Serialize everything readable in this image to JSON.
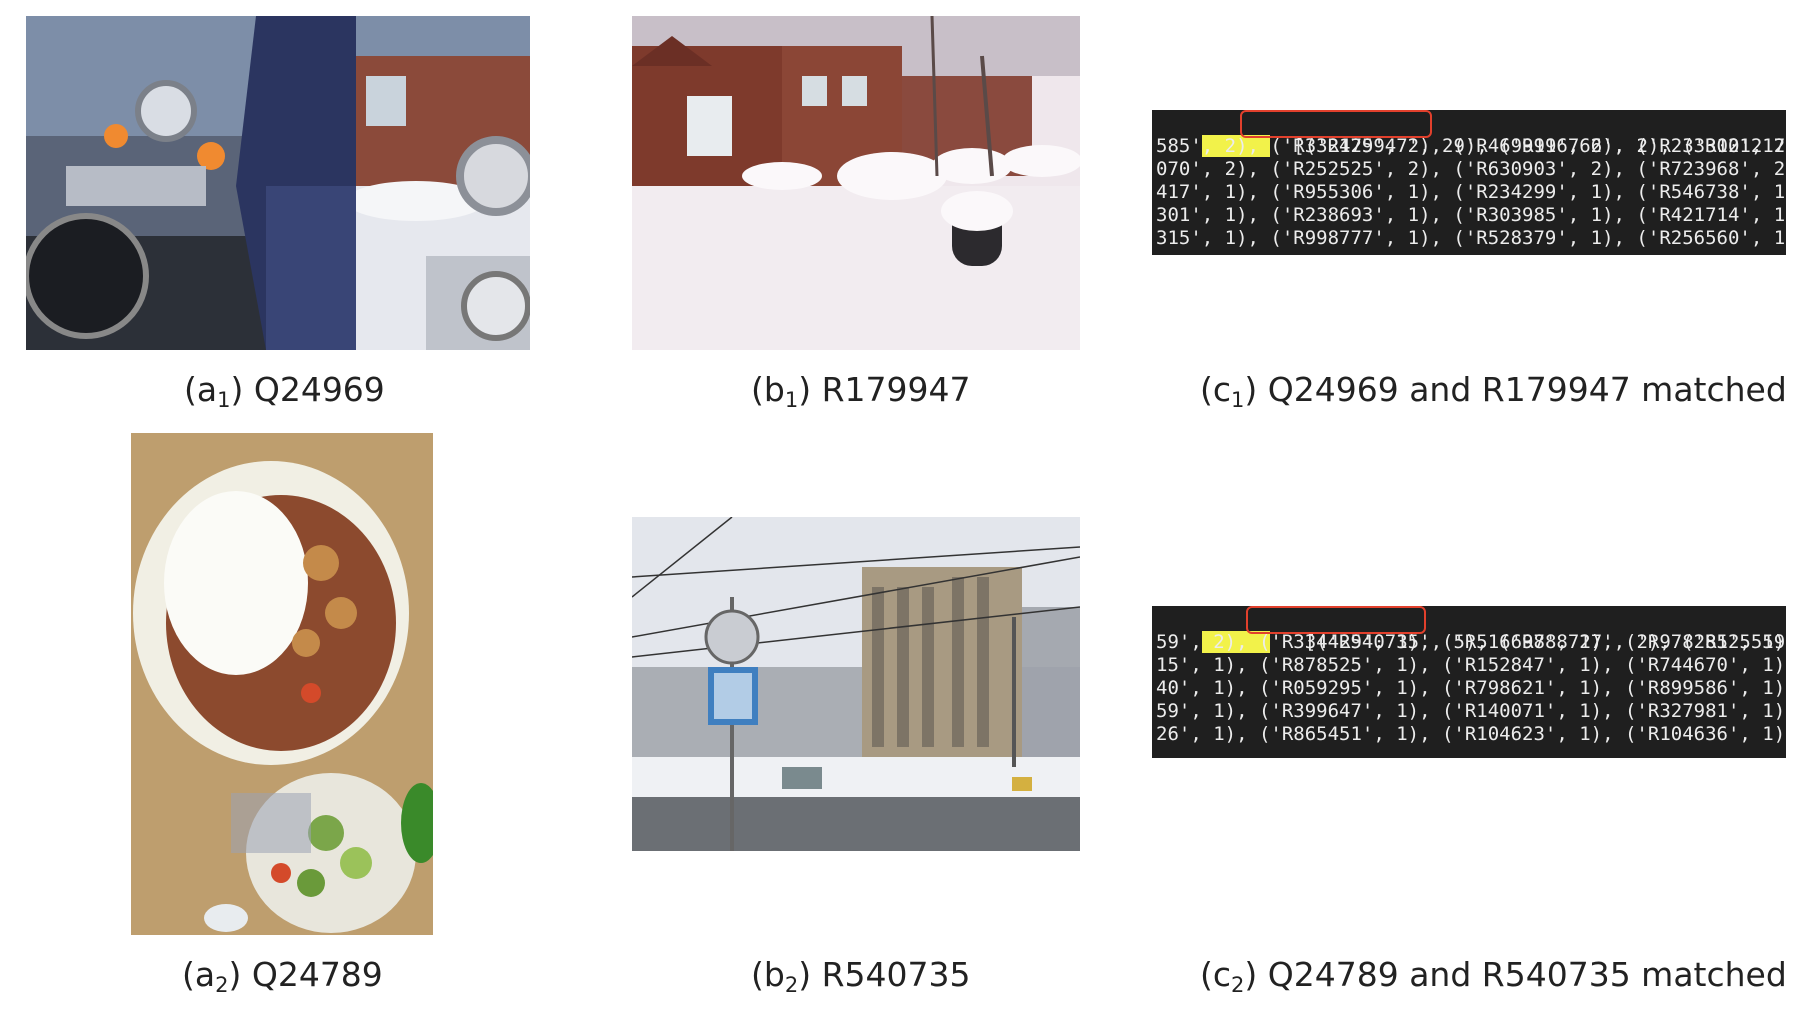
{
  "panels": {
    "a1": {
      "prefix": "(a",
      "sub": "1",
      "suffix": ") Q24969"
    },
    "b1": {
      "prefix": "(b",
      "sub": "1",
      "suffix": ") R179947"
    },
    "c1": {
      "prefix": "(c",
      "sub": "1",
      "suffix": ") Q24969 and R179947 matched",
      "query_id": "Q24969",
      "top_match": "[('R179947', 29),",
      "lines": [
        " ('R996766', 2), ('R021217', 2),",
        "585', 2), ('R332425', 2), ('R469911', 2), ('R233310', 2),",
        "070', 2), ('R252525', 2), ('R630903', 2), ('R723968', 2),",
        "417', 1), ('R955306', 1), ('R234299', 1), ('R546738', 1),",
        "301', 1), ('R238693', 1), ('R303985', 1), ('R421714', 1),",
        "315', 1), ('R998777', 1), ('R528379', 1), ('R256560', 1),"
      ]
    },
    "a2": {
      "prefix": "(a",
      "sub": "2",
      "suffix": ") Q24789"
    },
    "b2": {
      "prefix": "(b",
      "sub": "2",
      "suffix": ") R540735"
    },
    "c2": {
      "prefix": "(c",
      "sub": "2",
      "suffix": ") Q24789 and R540735 matched",
      "query_id": "Q24789",
      "top_match": "[('R540735', 5),",
      "lines": [
        " ('R888727', 2), ('R125559', 2),",
        "59', 2), ('R334429', 1), ('R516697', 1), ('R978285', 1),",
        "15', 1), ('R878525', 1), ('R152847', 1), ('R744670', 1),",
        "40', 1), ('R059295', 1), ('R798621', 1), ('R899586', 1),",
        "59', 1), ('R399647', 1), ('R140071', 1), ('R327981', 1),",
        "26', 1), ('R865451', 1), ('R104623', 1), ('R104636', 1),"
      ]
    }
  },
  "colors": {
    "terminal_bg": "#1f1f1f",
    "highlight": "#f2f24a",
    "match_box": "#e2402c"
  }
}
